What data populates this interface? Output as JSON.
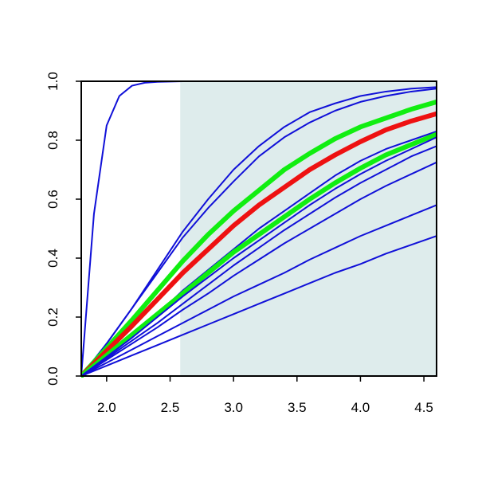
{
  "chart_data": {
    "type": "line",
    "title": "",
    "xlabel": "",
    "ylabel": "",
    "xlim": [
      1.8,
      4.6
    ],
    "ylim": [
      0.0,
      1.0
    ],
    "x_ticks": [
      2.0,
      2.5,
      3.0,
      3.5,
      4.0,
      4.5
    ],
    "x_tick_labels": [
      "2.0",
      "2.5",
      "3.0",
      "3.5",
      "4.0",
      "4.5"
    ],
    "y_ticks": [
      0.0,
      0.2,
      0.4,
      0.6,
      0.8,
      1.0
    ],
    "y_tick_labels": [
      "0.0",
      "0.2",
      "0.4",
      "0.6",
      "0.8",
      "1.0"
    ],
    "shaded_region": {
      "x": [
        2.58,
        4.6
      ],
      "color": "#deecec"
    },
    "grid": false,
    "legend": "none",
    "colors": {
      "blue": "#1010d8",
      "red": "#ee1111",
      "green": "#11ee11",
      "axis": "#000000"
    },
    "series": [
      {
        "color": "blue",
        "width": "thin",
        "x": [
          1.8,
          1.9,
          2.0,
          2.1,
          2.2,
          2.3,
          2.4,
          2.5,
          2.6,
          3.0,
          4.6
        ],
        "y": [
          0.0,
          0.55,
          0.85,
          0.95,
          0.985,
          0.995,
          0.998,
          0.999,
          1.0,
          1.0,
          1.0
        ]
      },
      {
        "color": "blue",
        "width": "thin",
        "x": [
          1.8,
          2.0,
          2.2,
          2.4,
          2.6,
          2.8,
          3.0,
          3.2,
          3.4,
          3.6,
          3.8,
          4.0,
          4.2,
          4.4,
          4.6
        ],
        "y": [
          0.0,
          0.11,
          0.23,
          0.36,
          0.49,
          0.6,
          0.7,
          0.78,
          0.845,
          0.895,
          0.925,
          0.95,
          0.965,
          0.975,
          0.98
        ]
      },
      {
        "color": "blue",
        "width": "thin",
        "x": [
          1.8,
          2.0,
          2.2,
          2.4,
          2.6,
          2.8,
          3.0,
          3.2,
          3.4,
          3.6,
          3.8,
          4.0,
          4.2,
          4.4,
          4.6
        ],
        "y": [
          0.0,
          0.11,
          0.23,
          0.35,
          0.47,
          0.57,
          0.66,
          0.745,
          0.81,
          0.86,
          0.9,
          0.93,
          0.95,
          0.965,
          0.975
        ]
      },
      {
        "color": "green",
        "width": "thick",
        "x": [
          1.8,
          2.0,
          2.2,
          2.4,
          2.6,
          2.8,
          3.0,
          3.2,
          3.4,
          3.6,
          3.8,
          4.0,
          4.2,
          4.4,
          4.6
        ],
        "y": [
          0.0,
          0.095,
          0.19,
          0.29,
          0.39,
          0.48,
          0.56,
          0.63,
          0.7,
          0.755,
          0.805,
          0.845,
          0.875,
          0.905,
          0.93
        ]
      },
      {
        "color": "red",
        "width": "thick",
        "x": [
          1.8,
          2.0,
          2.2,
          2.4,
          2.6,
          2.8,
          3.0,
          3.2,
          3.4,
          3.6,
          3.8,
          4.0,
          4.2,
          4.4,
          4.6
        ],
        "y": [
          0.0,
          0.085,
          0.17,
          0.26,
          0.35,
          0.43,
          0.51,
          0.58,
          0.64,
          0.7,
          0.75,
          0.795,
          0.835,
          0.865,
          0.89
        ]
      },
      {
        "color": "blue",
        "width": "thin",
        "x": [
          1.8,
          2.0,
          2.2,
          2.4,
          2.6,
          2.8,
          3.0,
          3.2,
          3.4,
          3.6,
          3.8,
          4.0,
          4.2,
          4.4,
          4.6
        ],
        "y": [
          0.0,
          0.07,
          0.14,
          0.21,
          0.29,
          0.36,
          0.43,
          0.5,
          0.56,
          0.62,
          0.68,
          0.73,
          0.77,
          0.8,
          0.83
        ]
      },
      {
        "color": "green",
        "width": "thick",
        "x": [
          1.8,
          2.0,
          2.2,
          2.4,
          2.6,
          2.8,
          3.0,
          3.2,
          3.4,
          3.6,
          3.8,
          4.0,
          4.2,
          4.4,
          4.6
        ],
        "y": [
          0.0,
          0.07,
          0.14,
          0.21,
          0.28,
          0.35,
          0.42,
          0.48,
          0.54,
          0.6,
          0.655,
          0.705,
          0.75,
          0.785,
          0.82
        ]
      },
      {
        "color": "blue",
        "width": "thin",
        "x": [
          1.8,
          2.0,
          2.2,
          2.4,
          2.6,
          2.8,
          3.0,
          3.2,
          3.4,
          3.6,
          3.8,
          4.0,
          4.2,
          4.4,
          4.6
        ],
        "y": [
          0.0,
          0.065,
          0.13,
          0.2,
          0.27,
          0.335,
          0.4,
          0.46,
          0.52,
          0.58,
          0.635,
          0.685,
          0.73,
          0.77,
          0.81
        ]
      },
      {
        "color": "blue",
        "width": "thin",
        "x": [
          1.8,
          2.0,
          2.2,
          2.4,
          2.6,
          2.8,
          3.0,
          3.2,
          3.4,
          3.6,
          3.8,
          4.0,
          4.2,
          4.4,
          4.6
        ],
        "y": [
          0.0,
          0.06,
          0.12,
          0.18,
          0.245,
          0.31,
          0.375,
          0.435,
          0.495,
          0.55,
          0.605,
          0.655,
          0.7,
          0.745,
          0.78
        ]
      },
      {
        "color": "blue",
        "width": "thin",
        "x": [
          1.8,
          2.0,
          2.2,
          2.4,
          2.6,
          2.8,
          3.0,
          3.2,
          3.4,
          3.6,
          3.8,
          4.0,
          4.2,
          4.4,
          4.6
        ],
        "y": [
          0.0,
          0.055,
          0.11,
          0.165,
          0.225,
          0.28,
          0.34,
          0.395,
          0.45,
          0.5,
          0.55,
          0.6,
          0.645,
          0.685,
          0.725
        ]
      },
      {
        "color": "blue",
        "width": "thin",
        "x": [
          1.8,
          2.0,
          2.2,
          2.4,
          2.6,
          2.8,
          3.0,
          3.2,
          3.4,
          3.6,
          3.8,
          4.0,
          4.2,
          4.4,
          4.6
        ],
        "y": [
          0.0,
          0.045,
          0.09,
          0.135,
          0.18,
          0.225,
          0.27,
          0.31,
          0.35,
          0.395,
          0.435,
          0.475,
          0.51,
          0.545,
          0.58
        ]
      },
      {
        "color": "blue",
        "width": "thin",
        "x": [
          1.8,
          2.0,
          2.2,
          2.4,
          2.6,
          2.8,
          3.0,
          3.2,
          3.4,
          3.6,
          3.8,
          4.0,
          4.2,
          4.4,
          4.6
        ],
        "y": [
          0.0,
          0.035,
          0.07,
          0.105,
          0.14,
          0.175,
          0.21,
          0.245,
          0.28,
          0.315,
          0.35,
          0.38,
          0.415,
          0.445,
          0.475
        ]
      }
    ]
  }
}
